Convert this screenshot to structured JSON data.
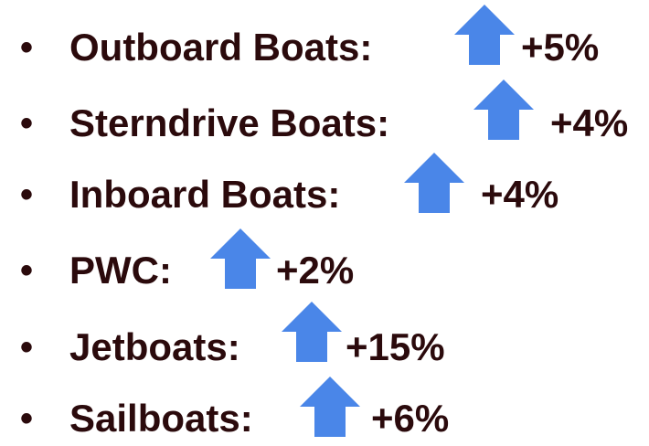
{
  "items": [
    {
      "label": "Outboard Boats:",
      "change": "+5%"
    },
    {
      "label": "Sterndrive Boats:",
      "change": "+4%"
    },
    {
      "label": "Inboard Boats:",
      "change": "+4%"
    },
    {
      "label": "PWC:",
      "change": "+2%"
    },
    {
      "label": "Jetboats:",
      "change": "+15%"
    },
    {
      "label": "Sailboats:",
      "change": "+6%"
    }
  ]
}
